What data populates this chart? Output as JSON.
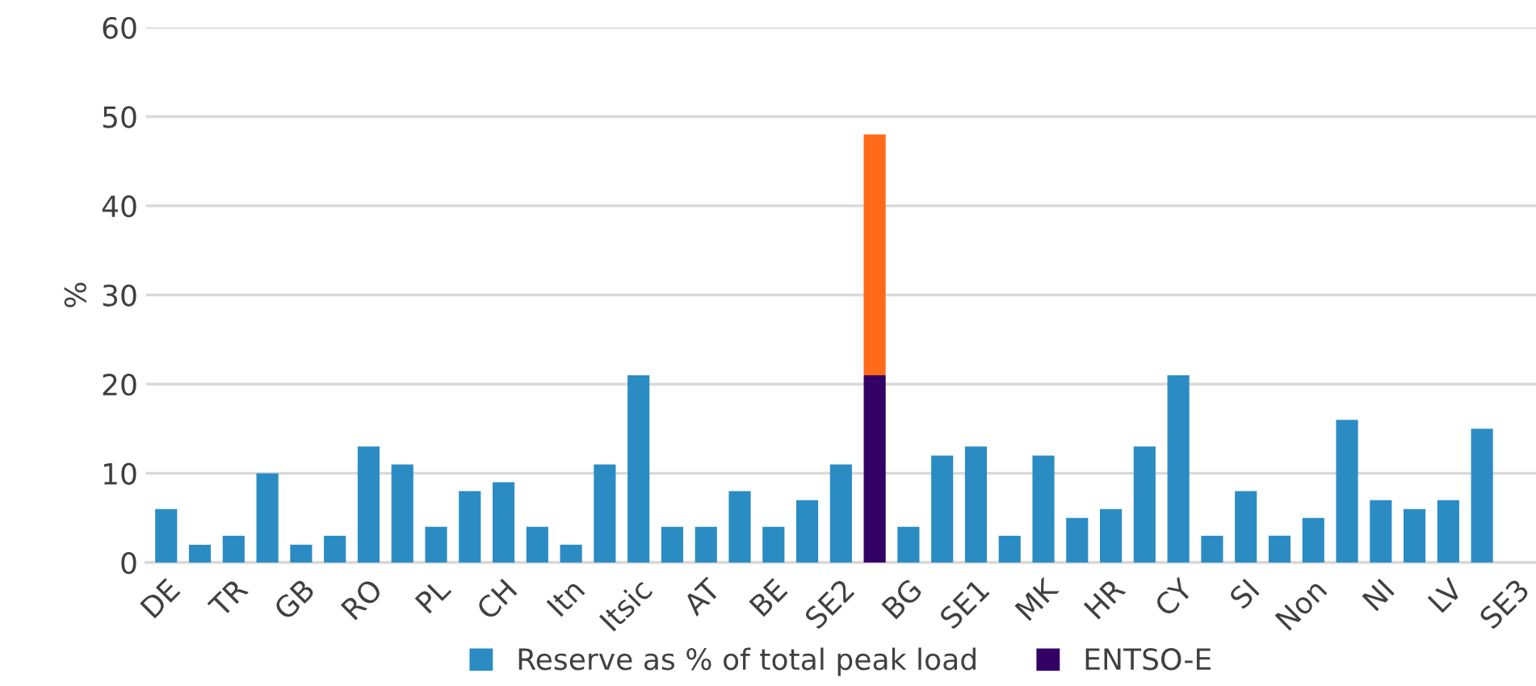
{
  "chart_data": {
    "type": "bar",
    "stacked": true,
    "ylabel": "%",
    "categories": [
      "DE",
      null,
      "TR",
      null,
      "GB",
      null,
      "RO",
      null,
      "PL",
      null,
      "CH",
      null,
      "Itn",
      null,
      "Itsic",
      null,
      "AT",
      null,
      "BE",
      null,
      "SE2",
      null,
      "BG",
      null,
      "SE1",
      null,
      "MK",
      null,
      "HR",
      null,
      "CY",
      null,
      "SI",
      null,
      "Non",
      null,
      "NI",
      null,
      "LV",
      null,
      "SE3"
    ],
    "series": [
      {
        "name": "Reserve as % of total peak load",
        "color": "#2b8cc4",
        "values": [
          6,
          2,
          3,
          10,
          2,
          3,
          13,
          11,
          4,
          8,
          9,
          4,
          2,
          11,
          21,
          4,
          4,
          8,
          4,
          7,
          11,
          null,
          4,
          12,
          13,
          3,
          12,
          5,
          6,
          13,
          21,
          3,
          8,
          3,
          5,
          16,
          7,
          6,
          7,
          15,
          null
        ]
      },
      {
        "name": "ENTSO-E",
        "color": "#330066",
        "values": [
          null,
          null,
          null,
          null,
          null,
          null,
          null,
          null,
          null,
          null,
          null,
          null,
          null,
          null,
          null,
          null,
          null,
          null,
          null,
          null,
          null,
          21,
          null,
          null,
          null,
          null,
          null,
          null,
          null,
          null,
          null,
          null,
          null,
          null,
          null,
          null,
          null,
          null,
          null,
          null,
          null
        ]
      },
      {
        "color": "#ff6a1a",
        "values": [
          null,
          null,
          null,
          null,
          null,
          null,
          null,
          null,
          null,
          null,
          null,
          null,
          null,
          null,
          null,
          null,
          null,
          null,
          null,
          null,
          null,
          27,
          null,
          null,
          null,
          null,
          null,
          null,
          null,
          null,
          null,
          null,
          null,
          null,
          null,
          null,
          null,
          null,
          null,
          null,
          null
        ]
      }
    ],
    "ylim": [
      0,
      60
    ],
    "yticks": [
      0,
      10,
      20,
      30,
      40,
      50,
      60
    ],
    "grid": "y",
    "legend": "bottom"
  }
}
